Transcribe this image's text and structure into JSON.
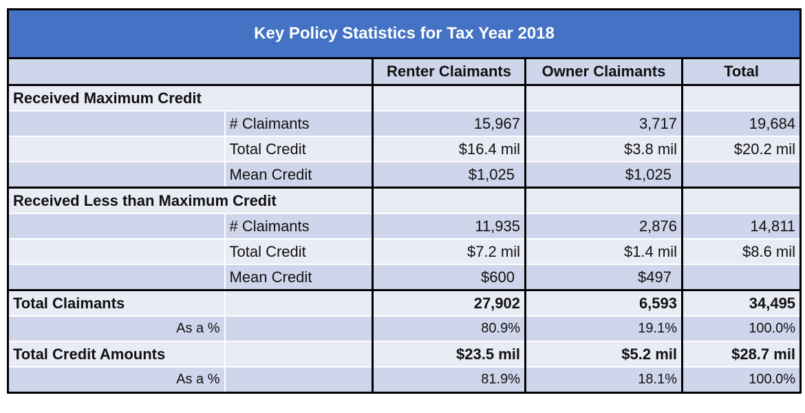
{
  "title": "Key Policy  Statistics for Tax Year 2018",
  "columns": [
    "Renter Claimants",
    "Owner Claimants",
    "Total"
  ],
  "sections": [
    {
      "label": "Received Maximum Credit",
      "rows": [
        {
          "label": "# Claimants",
          "renter": "15,967",
          "owner": "3,717",
          "total": "19,684"
        },
        {
          "label": "Total Credit",
          "renter": "$16.4 mil",
          "owner": "$3.8 mil",
          "total": "$20.2 mil"
        },
        {
          "label": "Mean Credit",
          "renter": "$1,025",
          "owner": "$1,025",
          "total": ""
        }
      ]
    },
    {
      "label": "Received Less than Maximum Credit",
      "rows": [
        {
          "label": "# Claimants",
          "renter": "11,935",
          "owner": "2,876",
          "total": "14,811"
        },
        {
          "label": "Total Credit",
          "renter": "$7.2 mil",
          "owner": "$1.4 mil",
          "total": "$8.6 mil"
        },
        {
          "label": "Mean Credit",
          "renter": "$600",
          "owner": "$497",
          "total": ""
        }
      ]
    }
  ],
  "totals": [
    {
      "label": "Total Claimants",
      "renter": "27,902",
      "owner": "6,593",
      "total": "34,495",
      "pct_label": "As a %",
      "pct_renter": "80.9%",
      "pct_owner": "19.1%",
      "pct_total": "100.0%"
    },
    {
      "label": "Total Credit Amounts",
      "renter": "$23.5 mil",
      "owner": "$5.2 mil",
      "total": "$28.7 mil",
      "pct_label": "As a %",
      "pct_renter": "81.9%",
      "pct_owner": "18.1%",
      "pct_total": "100.0%"
    }
  ],
  "colors": {
    "title_bg": "#4472C4",
    "band_light": "#E9EBF5",
    "band_dark": "#CFD5EA"
  }
}
